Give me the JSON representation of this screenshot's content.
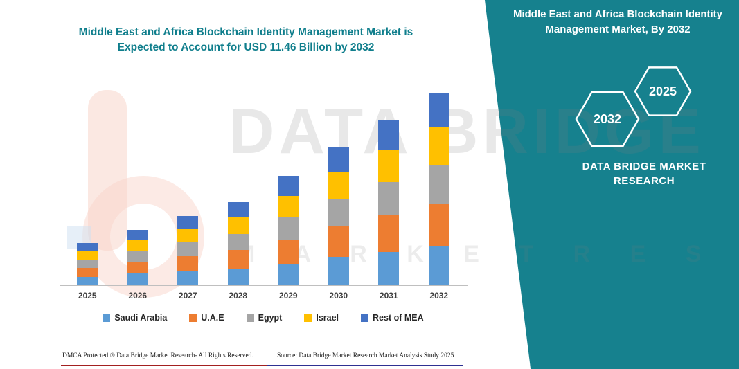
{
  "page": {
    "accent_teal": "#16818E",
    "footer_line_colors": [
      "#A32020",
      "#2E3192"
    ]
  },
  "chart_data": {
    "type": "bar",
    "stacked": true,
    "unit": "USD Billion",
    "title": "Middle East and Africa Blockchain Identity Management Market is Expected to Account for USD 11.46 Billion by 2032",
    "title_lines": [
      "Middle East and Africa Blockchain Identity Management Market is",
      "Expected to Account for USD 11.46 Billion by 2032"
    ],
    "categories": [
      "2025",
      "2026",
      "2027",
      "2028",
      "2029",
      "2030",
      "2031",
      "2032"
    ],
    "series": [
      {
        "name": "Saudi Arabia",
        "color": "#5B9BD5",
        "values": [
          0.5,
          0.7,
          0.85,
          1.0,
          1.3,
          1.7,
          2.0,
          2.3
        ]
      },
      {
        "name": "U.A.E",
        "color": "#ED7D31",
        "values": [
          0.55,
          0.72,
          0.9,
          1.1,
          1.45,
          1.8,
          2.2,
          2.55
        ]
      },
      {
        "name": "Egypt",
        "color": "#A5A5A5",
        "values": [
          0.5,
          0.65,
          0.8,
          0.95,
          1.3,
          1.65,
          1.95,
          2.3
        ]
      },
      {
        "name": "Israel",
        "color": "#FFC000",
        "values": [
          0.5,
          0.65,
          0.82,
          1.0,
          1.3,
          1.65,
          1.95,
          2.3
        ]
      },
      {
        "name": "Rest of MEA",
        "color": "#4472C4",
        "values": [
          0.47,
          0.59,
          0.77,
          0.92,
          1.19,
          1.47,
          1.75,
          2.01
        ]
      }
    ],
    "estimated_totals": [
      2.52,
      3.31,
      4.14,
      4.97,
      6.54,
      8.27,
      9.85,
      11.46
    ],
    "xlabel": "",
    "ylabel": "",
    "y_axis_visible": false,
    "grid": false,
    "legend_position": "bottom"
  },
  "side_panel": {
    "title": "Middle East and Africa Blockchain Identity Management Market, By 2032",
    "hexagon_back_label": "2032",
    "hexagon_front_label": "2025",
    "brand_line1": "DATA BRIDGE MARKET",
    "brand_line2": "RESEARCH"
  },
  "watermark": {
    "text_top": "DATA BRIDGE",
    "text_bottom": "M A R K E T   R E S E A R C H"
  },
  "footer": {
    "dmca": "DMCA Protected ® Data Bridge Market Research-  All Rights Reserved.",
    "source": "Source: Data Bridge Market Research  Market Analysis Study 2025"
  }
}
